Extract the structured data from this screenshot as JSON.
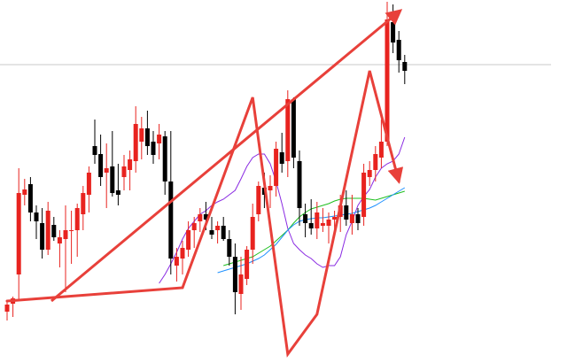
{
  "chart_data": {
    "type": "candlestick",
    "title": "",
    "xlabel": "",
    "ylabel": "",
    "ylim": [
      0,
      410
    ],
    "grid": false,
    "legend": "none",
    "colors": {
      "background": "#ffffff",
      "bull_candle": "#e8231f",
      "bear_candle": "#000000",
      "annotation": "#e8403a",
      "ma_purple": "#8a2be2",
      "ma_green": "#1fbf1f",
      "ma_blue": "#1e90ff",
      "price_line": "#c8c8c8"
    },
    "price_line": 337,
    "candles": [
      {
        "o": 58,
        "h": 70,
        "l": 48,
        "c": 66
      },
      {
        "o": 67,
        "h": 75,
        "l": 52,
        "c": 73
      },
      {
        "o": 100,
        "h": 220,
        "l": 72,
        "c": 192
      },
      {
        "o": 190,
        "h": 208,
        "l": 178,
        "c": 196
      },
      {
        "o": 202,
        "h": 210,
        "l": 160,
        "c": 170
      },
      {
        "o": 170,
        "h": 178,
        "l": 140,
        "c": 160
      },
      {
        "o": 158,
        "h": 175,
        "l": 118,
        "c": 128
      },
      {
        "o": 128,
        "h": 182,
        "l": 122,
        "c": 172
      },
      {
        "o": 156,
        "h": 165,
        "l": 138,
        "c": 142
      },
      {
        "o": 135,
        "h": 150,
        "l": 108,
        "c": 142
      },
      {
        "o": 140,
        "h": 178,
        "l": 80,
        "c": 150
      },
      {
        "o": 150,
        "h": 172,
        "l": 112,
        "c": 150
      },
      {
        "o": 150,
        "h": 180,
        "l": 120,
        "c": 175
      },
      {
        "o": 168,
        "h": 200,
        "l": 150,
        "c": 192
      },
      {
        "o": 190,
        "h": 222,
        "l": 170,
        "c": 215
      },
      {
        "o": 245,
        "h": 275,
        "l": 225,
        "c": 235
      },
      {
        "o": 236,
        "h": 258,
        "l": 200,
        "c": 210
      },
      {
        "o": 215,
        "h": 248,
        "l": 175,
        "c": 220
      },
      {
        "o": 222,
        "h": 262,
        "l": 188,
        "c": 192
      },
      {
        "o": 195,
        "h": 225,
        "l": 178,
        "c": 190
      },
      {
        "o": 210,
        "h": 235,
        "l": 195,
        "c": 222
      },
      {
        "o": 218,
        "h": 240,
        "l": 195,
        "c": 230
      },
      {
        "o": 228,
        "h": 290,
        "l": 215,
        "c": 270
      },
      {
        "o": 250,
        "h": 278,
        "l": 230,
        "c": 265
      },
      {
        "o": 265,
        "h": 285,
        "l": 235,
        "c": 245
      },
      {
        "o": 250,
        "h": 262,
        "l": 225,
        "c": 235
      },
      {
        "o": 248,
        "h": 270,
        "l": 230,
        "c": 258
      },
      {
        "o": 256,
        "h": 262,
        "l": 190,
        "c": 205
      },
      {
        "o": 205,
        "h": 262,
        "l": 100,
        "c": 118
      },
      {
        "o": 110,
        "h": 130,
        "l": 92,
        "c": 120
      },
      {
        "o": 118,
        "h": 138,
        "l": 100,
        "c": 130
      },
      {
        "o": 128,
        "h": 160,
        "l": 120,
        "c": 150
      },
      {
        "o": 150,
        "h": 165,
        "l": 130,
        "c": 158
      },
      {
        "o": 160,
        "h": 175,
        "l": 148,
        "c": 168
      },
      {
        "o": 168,
        "h": 182,
        "l": 150,
        "c": 162
      },
      {
        "o": 150,
        "h": 165,
        "l": 140,
        "c": 145
      },
      {
        "o": 150,
        "h": 160,
        "l": 135,
        "c": 155
      },
      {
        "o": 155,
        "h": 165,
        "l": 138,
        "c": 140
      },
      {
        "o": 140,
        "h": 150,
        "l": 110,
        "c": 120
      },
      {
        "o": 120,
        "h": 135,
        "l": 55,
        "c": 80
      },
      {
        "o": 78,
        "h": 120,
        "l": 60,
        "c": 100
      },
      {
        "o": 95,
        "h": 132,
        "l": 88,
        "c": 128
      },
      {
        "o": 128,
        "h": 180,
        "l": 112,
        "c": 165
      },
      {
        "o": 168,
        "h": 205,
        "l": 160,
        "c": 200
      },
      {
        "o": 198,
        "h": 215,
        "l": 175,
        "c": 190
      },
      {
        "o": 195,
        "h": 212,
        "l": 175,
        "c": 200
      },
      {
        "o": 200,
        "h": 250,
        "l": 188,
        "c": 242
      },
      {
        "o": 238,
        "h": 260,
        "l": 215,
        "c": 225
      },
      {
        "o": 228,
        "h": 308,
        "l": 210,
        "c": 298
      },
      {
        "o": 298,
        "h": 300,
        "l": 220,
        "c": 232
      },
      {
        "o": 228,
        "h": 240,
        "l": 155,
        "c": 175
      },
      {
        "o": 168,
        "h": 180,
        "l": 142,
        "c": 158
      },
      {
        "o": 158,
        "h": 185,
        "l": 145,
        "c": 152
      },
      {
        "o": 152,
        "h": 182,
        "l": 140,
        "c": 170
      },
      {
        "o": 155,
        "h": 175,
        "l": 148,
        "c": 158
      },
      {
        "o": 155,
        "h": 170,
        "l": 135,
        "c": 162
      },
      {
        "o": 162,
        "h": 172,
        "l": 150,
        "c": 165
      },
      {
        "o": 165,
        "h": 190,
        "l": 148,
        "c": 178
      },
      {
        "o": 178,
        "h": 195,
        "l": 155,
        "c": 162
      },
      {
        "o": 158,
        "h": 190,
        "l": 145,
        "c": 168
      },
      {
        "o": 168,
        "h": 175,
        "l": 150,
        "c": 158
      },
      {
        "o": 165,
        "h": 225,
        "l": 155,
        "c": 215
      },
      {
        "o": 210,
        "h": 228,
        "l": 200,
        "c": 218
      },
      {
        "o": 218,
        "h": 245,
        "l": 205,
        "c": 236
      },
      {
        "o": 232,
        "h": 275,
        "l": 220,
        "c": 250
      },
      {
        "o": 250,
        "h": 408,
        "l": 245,
        "c": 388
      },
      {
        "o": 385,
        "h": 405,
        "l": 350,
        "c": 362
      },
      {
        "o": 365,
        "h": 375,
        "l": 328,
        "c": 342
      },
      {
        "o": 340,
        "h": 348,
        "l": 315,
        "c": 330
      }
    ],
    "ma_series": [
      {
        "color": "#8a2be2",
        "values": [
          90,
          100,
          112,
          125,
          140,
          152,
          160,
          168,
          172,
          178,
          182,
          185,
          190,
          195,
          208,
          222,
          232,
          236,
          236,
          225,
          205,
          180,
          152,
          135,
          128,
          122,
          118,
          112,
          108,
          110,
          110,
          120,
          145,
          160,
          178,
          188,
          196,
          210,
          220,
          225,
          228,
          236,
          255
        ]
      },
      {
        "color": "#1fbf1f",
        "values": [
          110,
          112,
          114,
          116,
          118,
          120,
          124,
          128,
          132,
          138,
          144,
          150,
          158,
          165,
          170,
          174,
          176,
          178,
          180,
          183,
          185,
          186,
          186,
          186,
          186,
          185,
          184,
          186,
          188,
          190,
          192,
          194
        ]
      },
      {
        "color": "#1e90ff",
        "values": [
          102,
          104,
          106,
          108,
          110,
          112,
          115,
          118,
          122,
          128,
          134,
          142,
          150,
          156,
          160,
          162,
          163,
          164,
          164,
          165,
          166,
          167,
          168,
          169,
          171,
          173,
          175,
          178,
          182,
          186,
          190,
          194,
          198
        ]
      }
    ],
    "zigzag_points": [
      [
        0,
        70
      ],
      [
        30,
        85
      ],
      [
        42,
        300
      ],
      [
        48,
        10
      ],
      [
        53,
        55
      ],
      [
        62,
        330
      ],
      [
        67,
        205
      ]
    ],
    "trendline": [
      [
        0,
        70
      ],
      [
        68,
        398
      ]
    ]
  }
}
